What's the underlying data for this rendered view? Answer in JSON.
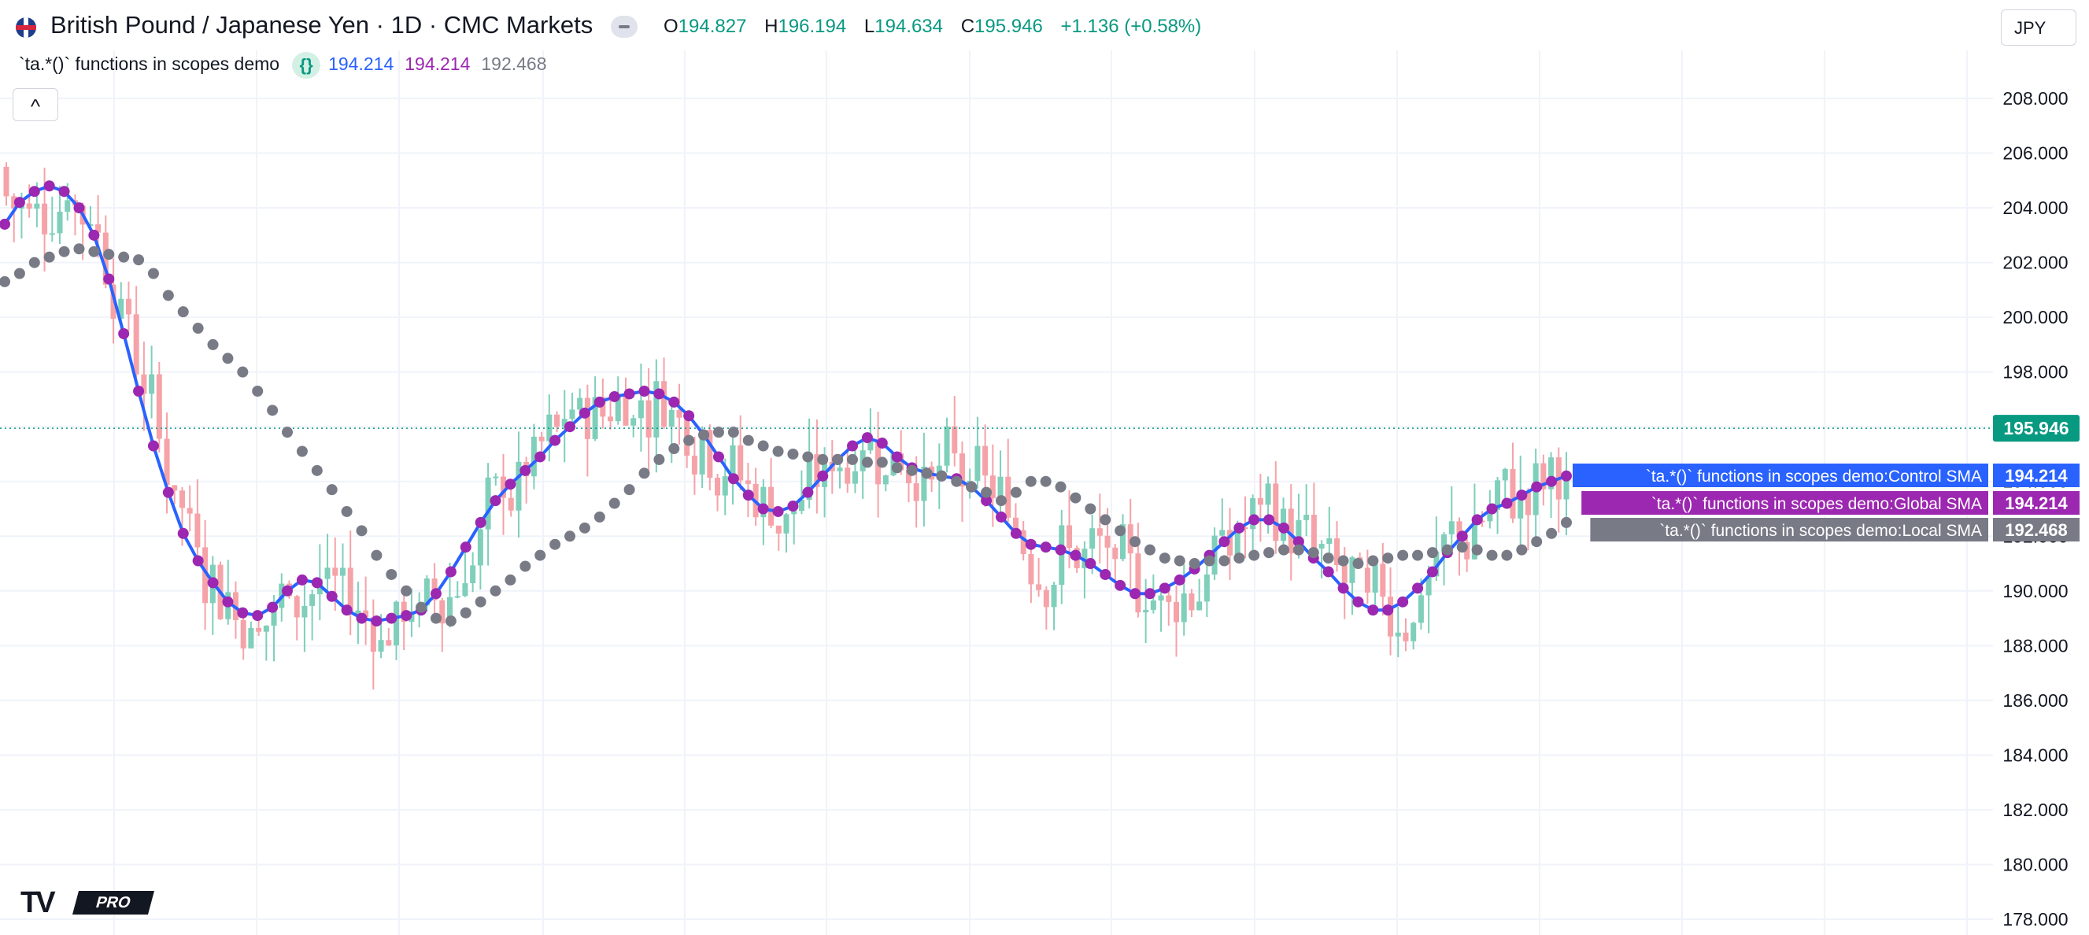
{
  "header": {
    "symbol_title": "British Pound / Japanese Yen · 1D · CMC Markets",
    "open_label": "O",
    "open": "194.827",
    "high_label": "H",
    "high": "196.194",
    "low_label": "L",
    "low": "194.634",
    "close_label": "C",
    "close": "195.946",
    "change": "+1.136 (+0.58%)",
    "currency": "JPY"
  },
  "indicator": {
    "name": "`ta.*()` functions in scopes demo",
    "icon": "{}",
    "value_control": "194.214",
    "value_global": "194.214",
    "value_local": "192.468"
  },
  "collapse_icon": "^",
  "logo": {
    "mark": "TV",
    "badge": "PRO"
  },
  "colors": {
    "up": "#089981",
    "down": "#f23645",
    "candle_up": "#7fcfba",
    "candle_down": "#f5a3a8",
    "control": "#2962ff",
    "global": "#9c27b0",
    "local": "#787b86",
    "price_line": "#089981"
  },
  "chart_data": {
    "type": "candlestick",
    "title": "",
    "y_axis": {
      "ticks": [
        "178.000",
        "180.000",
        "182.000",
        "184.000",
        "186.000",
        "188.000",
        "190.000",
        "192.000",
        "194.000",
        "196.000",
        "198.000",
        "200.000",
        "202.000",
        "204.000",
        "206.000",
        "208.000"
      ],
      "range": [
        177.0,
        209.3
      ]
    },
    "last_price": "195.946",
    "series": [
      {
        "name": "`ta.*()` functions in scopes demo:Control SMA",
        "value_label": "194.214",
        "style": "line",
        "color": "#2962ff",
        "values": [
          203.4,
          204.2,
          204.6,
          204.8,
          204.6,
          204.0,
          203.0,
          201.4,
          199.4,
          197.3,
          195.3,
          193.6,
          192.1,
          191.1,
          190.3,
          189.6,
          189.2,
          189.1,
          189.4,
          190.0,
          190.4,
          190.3,
          189.8,
          189.3,
          189.0,
          188.9,
          189.0,
          189.1,
          189.3,
          189.9,
          190.7,
          191.6,
          192.5,
          193.3,
          193.9,
          194.4,
          194.9,
          195.5,
          196.0,
          196.5,
          196.9,
          197.1,
          197.2,
          197.3,
          197.2,
          196.9,
          196.4,
          195.7,
          194.9,
          194.1,
          193.5,
          193.0,
          192.9,
          193.1,
          193.6,
          194.2,
          194.8,
          195.3,
          195.6,
          195.4,
          194.9,
          194.5,
          194.3,
          194.2,
          194.1,
          193.8,
          193.3,
          192.7,
          192.1,
          191.7,
          191.6,
          191.5,
          191.3,
          191.0,
          190.6,
          190.2,
          189.9,
          189.9,
          190.1,
          190.4,
          190.8,
          191.3,
          191.8,
          192.3,
          192.6,
          192.6,
          192.3,
          191.8,
          191.2,
          190.7,
          190.1,
          189.6,
          189.3,
          189.3,
          189.6,
          190.1,
          190.7,
          191.4,
          192.0,
          192.6,
          193.0,
          193.2,
          193.5,
          193.8,
          194.0,
          194.2
        ]
      },
      {
        "name": "`ta.*()` functions in scopes demo:Global SMA",
        "value_label": "194.214",
        "style": "circles",
        "color": "#9c27b0",
        "values": [
          203.4,
          204.2,
          204.6,
          204.8,
          204.6,
          204.0,
          203.0,
          201.4,
          199.4,
          197.3,
          195.3,
          193.6,
          192.1,
          191.1,
          190.3,
          189.6,
          189.2,
          189.1,
          189.4,
          190.0,
          190.4,
          190.3,
          189.8,
          189.3,
          189.0,
          188.9,
          189.0,
          189.1,
          189.3,
          189.9,
          190.7,
          191.6,
          192.5,
          193.3,
          193.9,
          194.4,
          194.9,
          195.5,
          196.0,
          196.5,
          196.9,
          197.1,
          197.2,
          197.3,
          197.2,
          196.9,
          196.4,
          195.7,
          194.9,
          194.1,
          193.5,
          193.0,
          192.9,
          193.1,
          193.6,
          194.2,
          194.8,
          195.3,
          195.6,
          195.4,
          194.9,
          194.5,
          194.3,
          194.2,
          194.1,
          193.8,
          193.3,
          192.7,
          192.1,
          191.7,
          191.6,
          191.5,
          191.3,
          191.0,
          190.6,
          190.2,
          189.9,
          189.9,
          190.1,
          190.4,
          190.8,
          191.3,
          191.8,
          192.3,
          192.6,
          192.6,
          192.3,
          191.8,
          191.2,
          190.7,
          190.1,
          189.6,
          189.3,
          189.3,
          189.6,
          190.1,
          190.7,
          191.4,
          192.0,
          192.6,
          193.0,
          193.2,
          193.5,
          193.8,
          194.0,
          194.2
        ]
      },
      {
        "name": "`ta.*()` functions in scopes demo:Local SMA",
        "value_label": "192.468",
        "style": "circles",
        "color": "#787b86",
        "values": [
          201.3,
          201.6,
          202.0,
          202.2,
          202.4,
          202.5,
          202.4,
          202.3,
          202.2,
          202.1,
          201.6,
          200.8,
          200.2,
          199.6,
          199.0,
          198.5,
          198.0,
          197.3,
          196.6,
          195.8,
          195.1,
          194.4,
          193.7,
          192.9,
          192.2,
          191.3,
          190.6,
          190.0,
          189.4,
          189.0,
          188.9,
          189.2,
          189.6,
          190.0,
          190.4,
          190.9,
          191.3,
          191.7,
          192.0,
          192.3,
          192.7,
          193.2,
          193.7,
          194.3,
          194.8,
          195.2,
          195.5,
          195.7,
          195.8,
          195.8,
          195.5,
          195.3,
          195.1,
          195.0,
          194.9,
          194.8,
          194.8,
          194.8,
          194.7,
          194.7,
          194.5,
          194.4,
          194.3,
          194.2,
          194.0,
          193.8,
          193.6,
          193.3,
          193.6,
          194.0,
          194.0,
          193.8,
          193.4,
          193.0,
          192.6,
          192.2,
          191.8,
          191.5,
          191.2,
          191.1,
          191.0,
          191.1,
          191.1,
          191.2,
          191.3,
          191.4,
          191.5,
          191.5,
          191.4,
          191.2,
          191.1,
          191.0,
          191.1,
          191.2,
          191.3,
          191.3,
          191.4,
          191.5,
          191.6,
          191.5,
          191.3,
          191.3,
          191.5,
          191.8,
          192.1,
          192.5
        ]
      }
    ]
  }
}
